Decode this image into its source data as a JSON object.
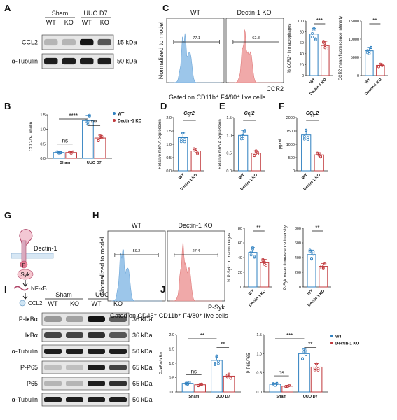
{
  "panels": {
    "A": {
      "letter": "A",
      "groups": [
        "Sham",
        "UUO D7"
      ],
      "lanes": [
        "WT",
        "KO",
        "WT",
        "KO"
      ],
      "blots": [
        {
          "name": "CCL2",
          "kda": "15 kDa",
          "bands": [
            0.1,
            0.1,
            0.95,
            0.6
          ]
        },
        {
          "name": "α-Tubulin",
          "kda": "50 kDa",
          "bands": [
            0.9,
            0.9,
            0.9,
            0.9
          ]
        }
      ]
    },
    "B": {
      "letter": "B",
      "ylabel": "CCL2/α-Tubulin",
      "legend": [
        "WT",
        "Dectin-1 KO"
      ],
      "categories": [
        "Sham",
        "UUO D7"
      ],
      "stats": [
        "ns",
        "****",
        "***"
      ]
    },
    "C": {
      "letter": "C",
      "wt_label": "WT",
      "ko_label": "Dectin-1 KO",
      "ylabel": "Normalized to model",
      "xlabel": "CCR2",
      "gate_label": "Gated on CD11b⁺ F4/80⁺ live cells",
      "wt_pct": "77.1",
      "ko_pct": "62.8",
      "bar1_ylabel": "% CCR2⁺ in macrophages",
      "bar2_ylabel": "CCR2 mean fluorescence intensity",
      "bar1_stat": "***",
      "bar2_stat": "**"
    },
    "D": {
      "letter": "D",
      "title": "Ccr2",
      "ylabel": "Relative mRNA expression",
      "stat": "*"
    },
    "E": {
      "letter": "E",
      "title": "Ccl2",
      "ylabel": "Relative mRNA expression",
      "stat": "*"
    },
    "F": {
      "letter": "F",
      "title": "CCL2",
      "ylabel": "pg/ml",
      "stat": "**"
    },
    "G": {
      "letter": "G",
      "receptor": "Dectin-1",
      "phospho": "P",
      "kinase": "Syk",
      "tf": "NF-κB",
      "product": "CCL2"
    },
    "H": {
      "letter": "H",
      "wt_label": "WT",
      "ko_label": "Dectin-1 KO",
      "ylabel": "Normalized to model",
      "xlabel": "P-Syk",
      "gate_label": "Gated on CD45⁺ CD11b⁺ F4/80⁺ live cells",
      "wt_pct": "59.2",
      "ko_pct": "27.4",
      "bar1_ylabel": "% P-Syk⁺ in macrophages",
      "bar2_ylabel": "P-Syk mean fluorescence intensity",
      "bar1_stat": "**",
      "bar2_stat": "**"
    },
    "I": {
      "letter": "I",
      "groups": [
        "Sham",
        "UUO D7"
      ],
      "lanes": [
        "WT",
        "KO",
        "WT",
        "KO"
      ],
      "blots": [
        {
          "name": "P-IκBα",
          "kda": "36 kDa",
          "bands": [
            0.25,
            0.2,
            0.95,
            0.55
          ]
        },
        {
          "name": "IκBα",
          "kda": "36 kDa",
          "bands": [
            0.7,
            0.7,
            0.8,
            0.6
          ]
        },
        {
          "name": "α-Tubulin",
          "kda": "50 kDa",
          "bands": [
            0.9,
            0.9,
            0.9,
            0.9
          ]
        },
        {
          "name": "P-P65",
          "kda": "65 kDa",
          "bands": [
            0.05,
            0.05,
            0.9,
            0.7
          ]
        },
        {
          "name": "P65",
          "kda": "65 kDa",
          "bands": [
            0.1,
            0.1,
            0.9,
            0.8
          ]
        },
        {
          "name": "α-Tubulin",
          "kda": "50 kDa",
          "bands": [
            0.9,
            0.9,
            0.9,
            0.9
          ]
        }
      ]
    },
    "J": {
      "letter": "J",
      "ylabel1": "P-IκBα/IκBα",
      "ylabel2": "P-P65/P65",
      "legend": [
        "WT",
        "Dectin-1 KO"
      ],
      "categories": [
        "Sham",
        "UUO D7"
      ],
      "stats1": [
        "ns",
        "**",
        "**"
      ],
      "stats2": [
        "ns",
        "***",
        "**"
      ]
    }
  },
  "colors": {
    "wt": "#2f80c0",
    "ko": "#c0383c",
    "wt_hist": "#9cc6ea",
    "ko_hist": "#f0a9a9"
  },
  "chart_data": [
    {
      "id": "B",
      "type": "bar",
      "categories": [
        "Sham",
        "UUO D7"
      ],
      "series": [
        {
          "name": "WT",
          "values": [
            0.2,
            1.3
          ]
        },
        {
          "name": "Dectin-1 KO",
          "values": [
            0.2,
            0.7
          ]
        }
      ],
      "ylim": [
        0,
        1.5
      ],
      "yticks": [
        "0.0",
        "0.5",
        "1.0",
        "1.5"
      ]
    },
    {
      "id": "C1",
      "type": "bar",
      "categories": [
        "WT",
        "Dectin-1 KO"
      ],
      "values": [
        76,
        55
      ],
      "ylim": [
        0,
        100
      ],
      "yticks": [
        "0",
        "20",
        "40",
        "60",
        "80",
        "100"
      ]
    },
    {
      "id": "C2",
      "type": "bar",
      "categories": [
        "WT",
        "Dectin-1 KO"
      ],
      "values": [
        6800,
        2800
      ],
      "ylim": [
        0,
        15000
      ],
      "yticks": [
        "0",
        "5000",
        "10000",
        "15000"
      ]
    },
    {
      "id": "D",
      "type": "bar",
      "categories": [
        "WT",
        "Dectin-1 KO"
      ],
      "values": [
        1.25,
        0.75
      ],
      "ylim": [
        0,
        2.0
      ],
      "yticks": [
        "0.0",
        "0.5",
        "1.0",
        "1.5",
        "2.0"
      ]
    },
    {
      "id": "E",
      "type": "bar",
      "categories": [
        "WT",
        "Dectin-1 KO"
      ],
      "values": [
        1.0,
        0.5
      ],
      "ylim": [
        0,
        1.5
      ],
      "yticks": [
        "0.0",
        "0.5",
        "1.0",
        "1.5"
      ]
    },
    {
      "id": "F",
      "type": "bar",
      "categories": [
        "WT",
        "Dectin-1 KO"
      ],
      "values": [
        1350,
        600
      ],
      "ylim": [
        0,
        2000
      ],
      "yticks": [
        "0",
        "500",
        "1000",
        "1500",
        "2000"
      ]
    },
    {
      "id": "H1",
      "type": "bar",
      "categories": [
        "WT",
        "Dectin-1 KO"
      ],
      "values": [
        47,
        33
      ],
      "ylim": [
        0,
        80
      ],
      "yticks": [
        "0",
        "20",
        "40",
        "60",
        "80"
      ]
    },
    {
      "id": "H2",
      "type": "bar",
      "categories": [
        "WT",
        "Dectin-1 KO"
      ],
      "values": [
        440,
        280
      ],
      "ylim": [
        0,
        800
      ],
      "yticks": [
        "0",
        "200",
        "400",
        "600",
        "800"
      ]
    },
    {
      "id": "J1",
      "type": "bar",
      "categories": [
        "Sham",
        "UUO D7"
      ],
      "series": [
        {
          "name": "WT",
          "values": [
            0.3,
            1.1
          ]
        },
        {
          "name": "Dectin-1 KO",
          "values": [
            0.25,
            0.55
          ]
        }
      ],
      "ylim": [
        0,
        2.0
      ],
      "yticks": [
        "0.0",
        "0.5",
        "1.0",
        "1.5",
        "2.0"
      ]
    },
    {
      "id": "J2",
      "type": "bar",
      "categories": [
        "Sham",
        "UUO D7"
      ],
      "series": [
        {
          "name": "WT",
          "values": [
            0.2,
            1.0
          ]
        },
        {
          "name": "Dectin-1 KO",
          "values": [
            0.15,
            0.65
          ]
        }
      ],
      "ylim": [
        0,
        1.5
      ],
      "yticks": [
        "0.0",
        "0.5",
        "1.0",
        "1.5"
      ]
    }
  ]
}
